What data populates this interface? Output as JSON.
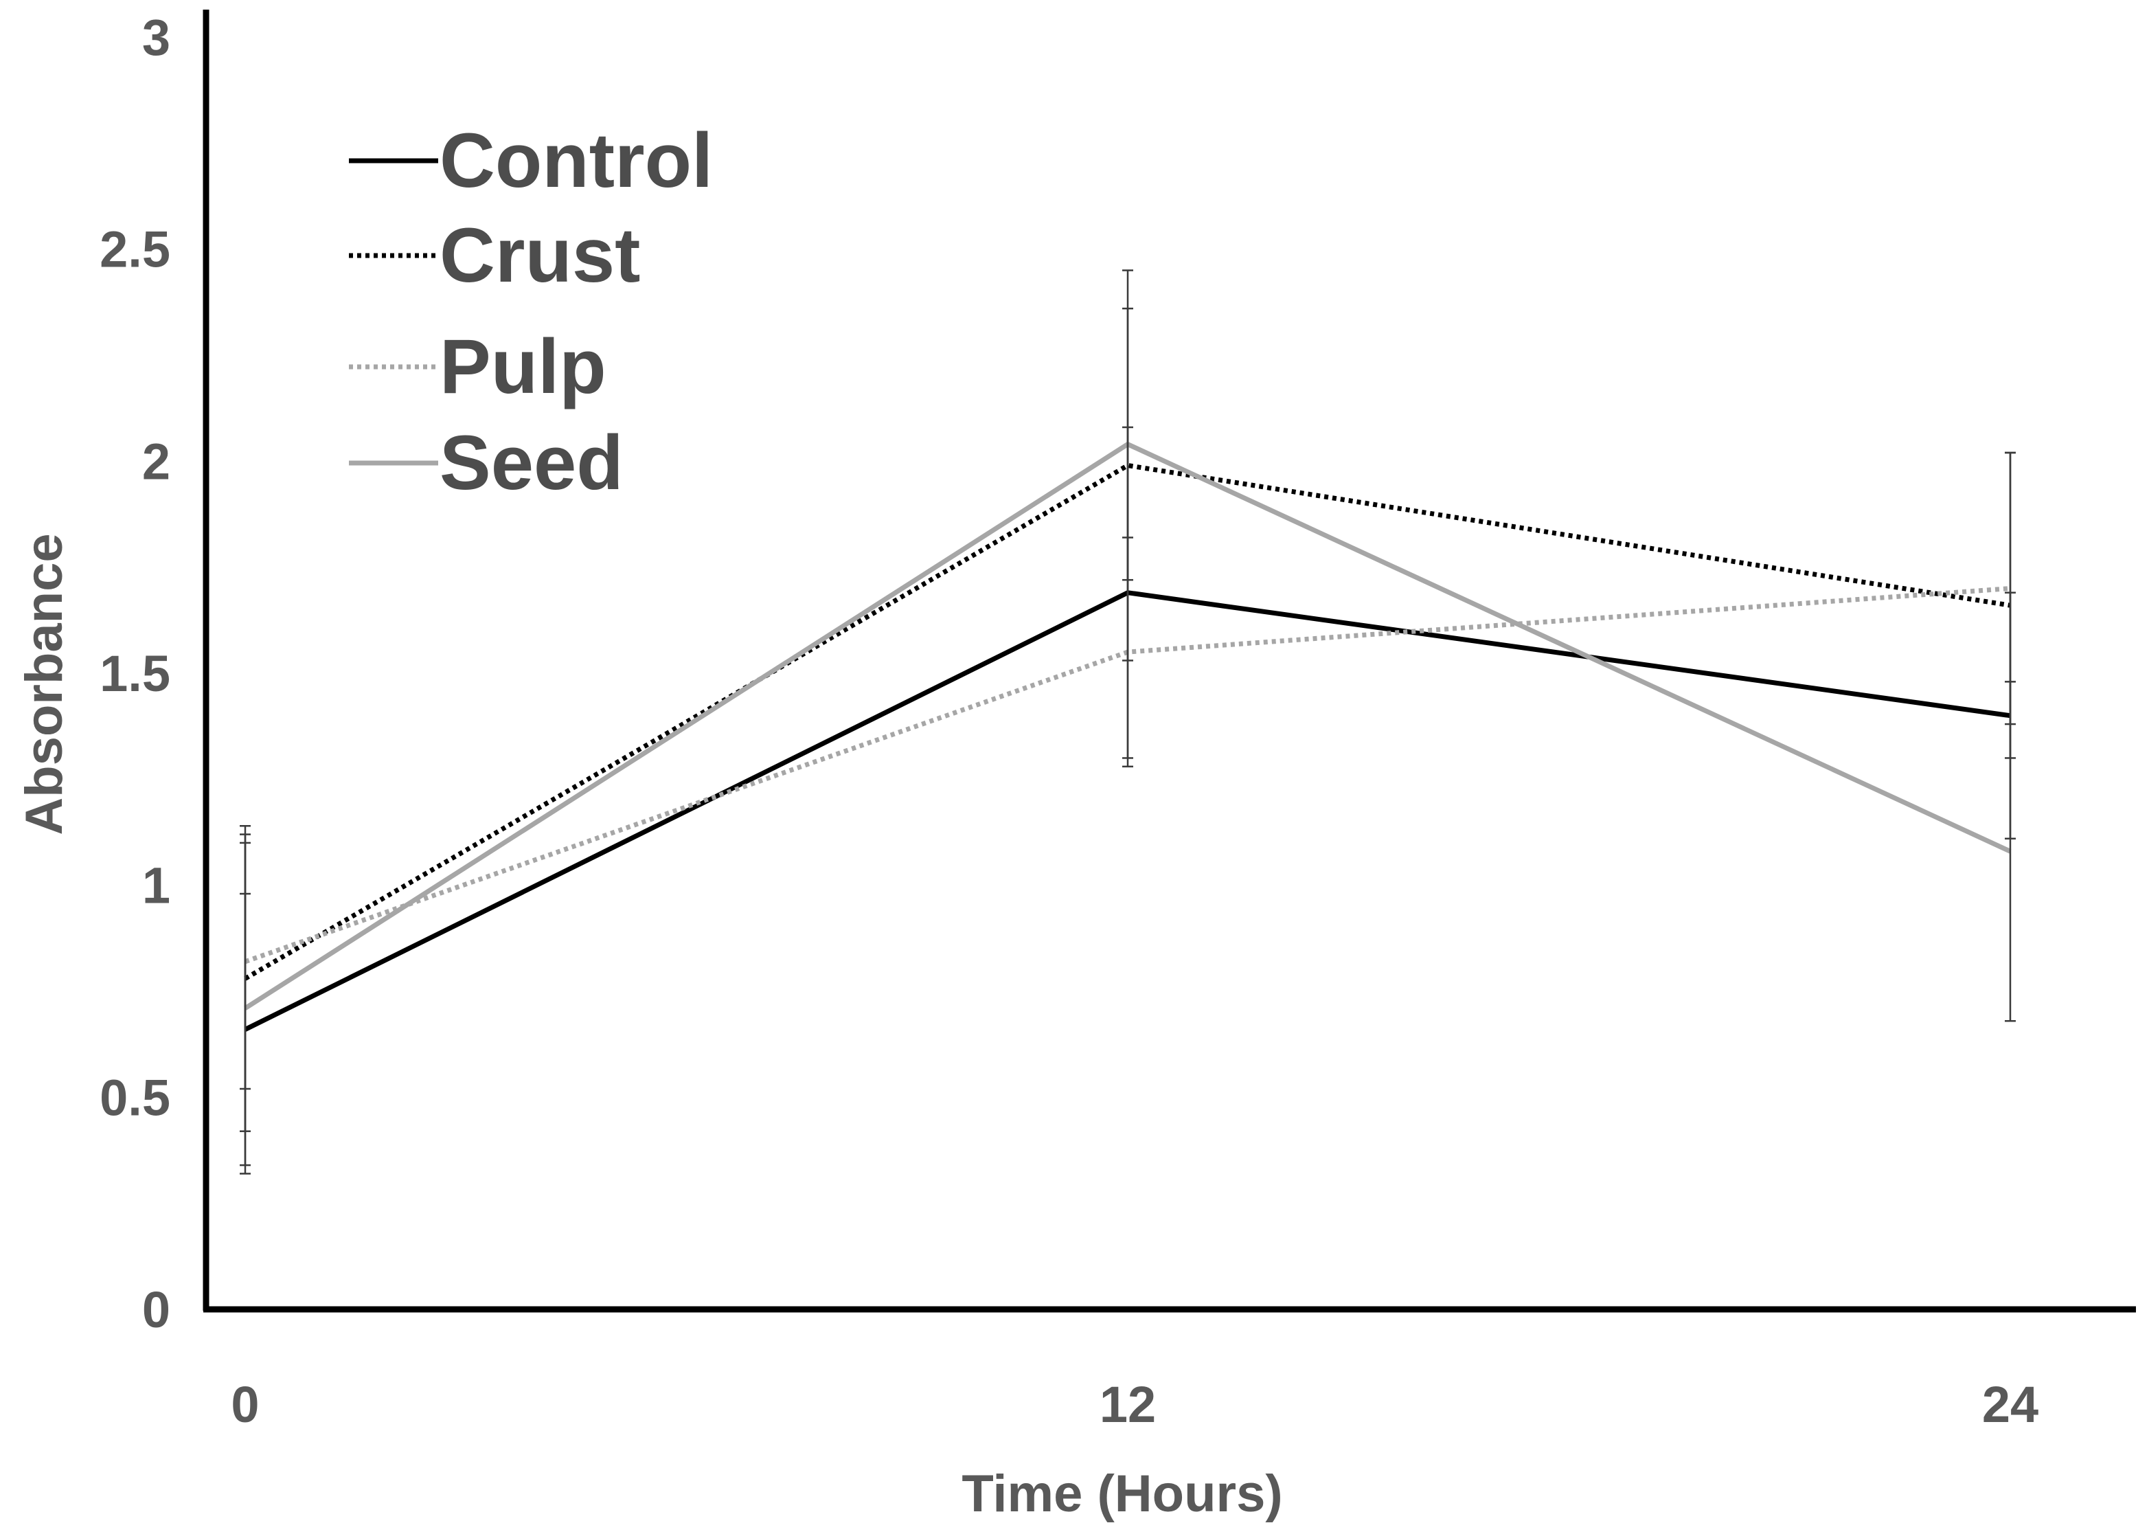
{
  "chart_data": {
    "type": "line",
    "title": "",
    "xlabel": "Time (Hours)",
    "ylabel": "Absorbance",
    "x": [
      0,
      12,
      24
    ],
    "x_tick_labels": [
      "0",
      "12",
      "24"
    ],
    "ylim": [
      0,
      3
    ],
    "yticks": [
      0,
      0.5,
      1,
      1.5,
      2,
      2.5,
      3
    ],
    "y_tick_labels": [
      "0",
      "0.5",
      "1",
      "1.5",
      "2",
      "2.5",
      "3"
    ],
    "grid": false,
    "legend_position": "top-left",
    "series": [
      {
        "name": "Control",
        "values": [
          0.66,
          1.69,
          1.4
        ],
        "errors": [
          0.32,
          0.39,
          0.29
        ],
        "color": "#000000",
        "style": "solid"
      },
      {
        "name": "Crust",
        "values": [
          0.78,
          1.99,
          1.66
        ],
        "errors": [
          0.36,
          0.46,
          0.36
        ],
        "color": "#000000",
        "style": "dotted"
      },
      {
        "name": "Pulp",
        "values": [
          0.82,
          1.55,
          1.7
        ],
        "errors": [
          0.3,
          0.27,
          0.32
        ],
        "color": "#a6a6a6",
        "style": "dotted"
      },
      {
        "name": "Seed",
        "values": [
          0.71,
          2.04,
          1.08
        ],
        "errors": [
          0.39,
          0.32,
          0.4
        ],
        "color": "#a6a6a6",
        "style": "solid"
      }
    ]
  }
}
